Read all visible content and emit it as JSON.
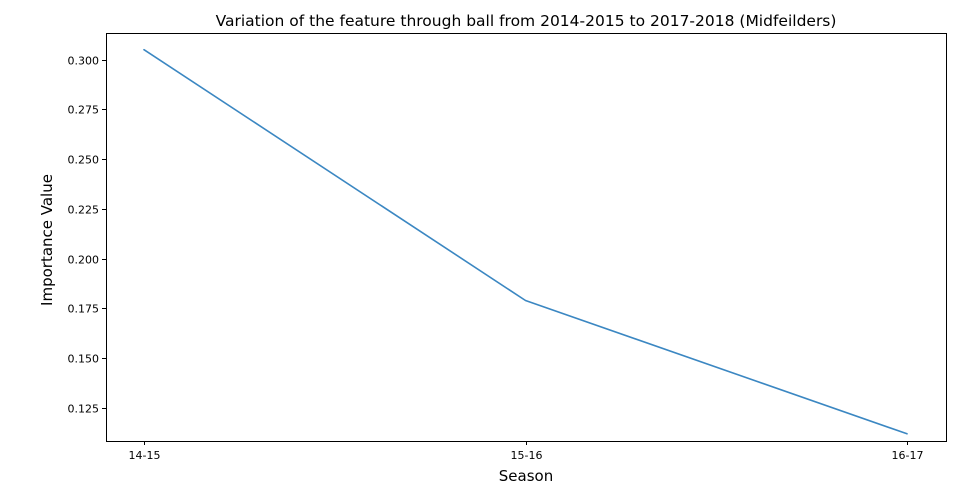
{
  "chart_data": {
    "type": "line",
    "title": "Variation of the feature through ball from 2014-2015 to 2017-2018 (Midfeilders)",
    "xlabel": "Season",
    "ylabel": "Importance Value",
    "categories": [
      "14-15",
      "15-16",
      "16-17"
    ],
    "series": [
      {
        "values": [
          0.305,
          0.179,
          0.112
        ]
      }
    ],
    "ylim": [
      0.1084,
      0.3134
    ],
    "yticks": [
      0.125,
      0.15,
      0.175,
      0.2,
      0.225,
      0.25,
      0.275,
      0.3
    ],
    "ytick_labels": [
      "0.125",
      "0.150",
      "0.175",
      "0.200",
      "0.225",
      "0.250",
      "0.275",
      "0.300"
    ],
    "grid": false,
    "line_color": "#3b87c2"
  }
}
